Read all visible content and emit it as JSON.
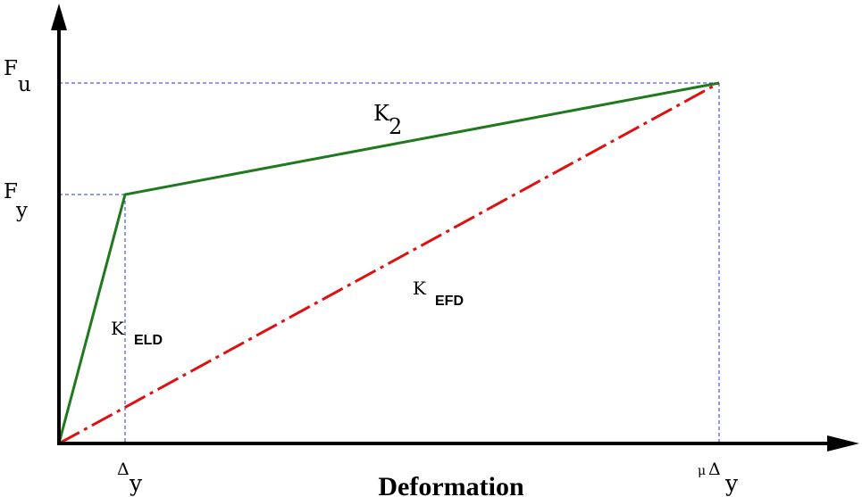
{
  "diagram": {
    "x_axis_label": "Deformation",
    "y_axis_label": "",
    "force_labels": {
      "ultimate": {
        "main": "F",
        "sub": "u"
      },
      "yield": {
        "main": "F",
        "sub": "y"
      }
    },
    "deformation_labels": {
      "yield": {
        "main": "Δ",
        "sub": "y"
      },
      "ultimate": {
        "prefix": "μ",
        "main": "Δ",
        "sub": "y"
      }
    },
    "stiffness_labels": {
      "post_yield": {
        "main": "K",
        "sub": "2"
      },
      "elastic": {
        "main": "K",
        "sub": "ELD"
      },
      "effective": {
        "main": "K",
        "sub": "EFD"
      }
    },
    "colors": {
      "backbone": "#1f7a1f",
      "effective_line": "#e01010",
      "guides": "#2233ee",
      "axes": "#000000"
    }
  }
}
